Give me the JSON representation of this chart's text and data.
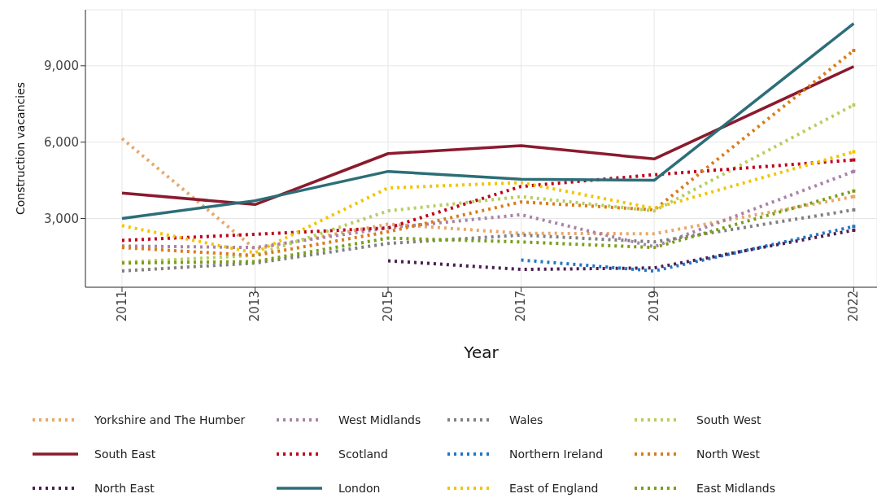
{
  "chart_data": {
    "type": "line",
    "xlabel": "Year",
    "ylabel": "Construction vacancies",
    "x": [
      2011,
      2013,
      2015,
      2017,
      2019,
      2022
    ],
    "xlim": [
      2010.45,
      2022.35
    ],
    "xticks": [
      2011,
      2013,
      2015,
      2017,
      2019,
      2022
    ],
    "ylim": [
      300,
      11200
    ],
    "yticks": [
      {
        "value": 3000,
        "label": "3,000"
      },
      {
        "value": 6000,
        "label": "6,000"
      },
      {
        "value": 9000,
        "label": "9,000"
      }
    ],
    "grid": true,
    "legend": "bottom",
    "series": [
      {
        "name": "Yorkshire and The Humber",
        "color": "#e8a86b",
        "line_style": "dotted",
        "values": [
          6140,
          1800,
          2780,
          2420,
          2400,
          3860
        ]
      },
      {
        "name": "West Midlands",
        "color": "#a883a8",
        "line_style": "dotted",
        "values": [
          1920,
          1860,
          2630,
          3150,
          1890,
          4850
        ]
      },
      {
        "name": "Wales",
        "color": "#808080",
        "line_style": "dotted",
        "values": [
          940,
          1250,
          2020,
          2350,
          2080,
          3340
        ]
      },
      {
        "name": "South West",
        "color": "#b5cf5f",
        "line_style": "dotted",
        "values": [
          1280,
          1550,
          3300,
          3860,
          3300,
          7460
        ]
      },
      {
        "name": "South East",
        "color": "#8b1a2e",
        "line_style": "solid",
        "values": [
          4000,
          3550,
          5550,
          5860,
          5340,
          8970
        ]
      },
      {
        "name": "Scotland",
        "color": "#c0001a",
        "line_style": "dotted",
        "values": [
          2140,
          2380,
          2630,
          4260,
          4720,
          5300
        ]
      },
      {
        "name": "Northern Ireland",
        "color": "#1f78c8",
        "line_style": "dotted",
        "values": [
          null,
          null,
          null,
          1370,
          940,
          2690
        ]
      },
      {
        "name": "North West",
        "color": "#d97c1a",
        "line_style": "dotted",
        "values": [
          1860,
          1550,
          2480,
          3650,
          3340,
          9600
        ]
      },
      {
        "name": "North East",
        "color": "#4b1e52",
        "line_style": "dotted",
        "values": [
          null,
          null,
          1340,
          1000,
          1060,
          2540
        ]
      },
      {
        "name": "London",
        "color": "#2c6e78",
        "line_style": "solid",
        "values": [
          3000,
          3700,
          4850,
          4540,
          4500,
          10660
        ]
      },
      {
        "name": "East of England",
        "color": "#f2c500",
        "line_style": "dotted",
        "values": [
          2720,
          1650,
          4200,
          4410,
          3400,
          5620
        ]
      },
      {
        "name": "East Midlands",
        "color": "#7a9f1a",
        "line_style": "dotted",
        "values": [
          1250,
          1310,
          2230,
          2080,
          1860,
          4080
        ]
      }
    ]
  }
}
